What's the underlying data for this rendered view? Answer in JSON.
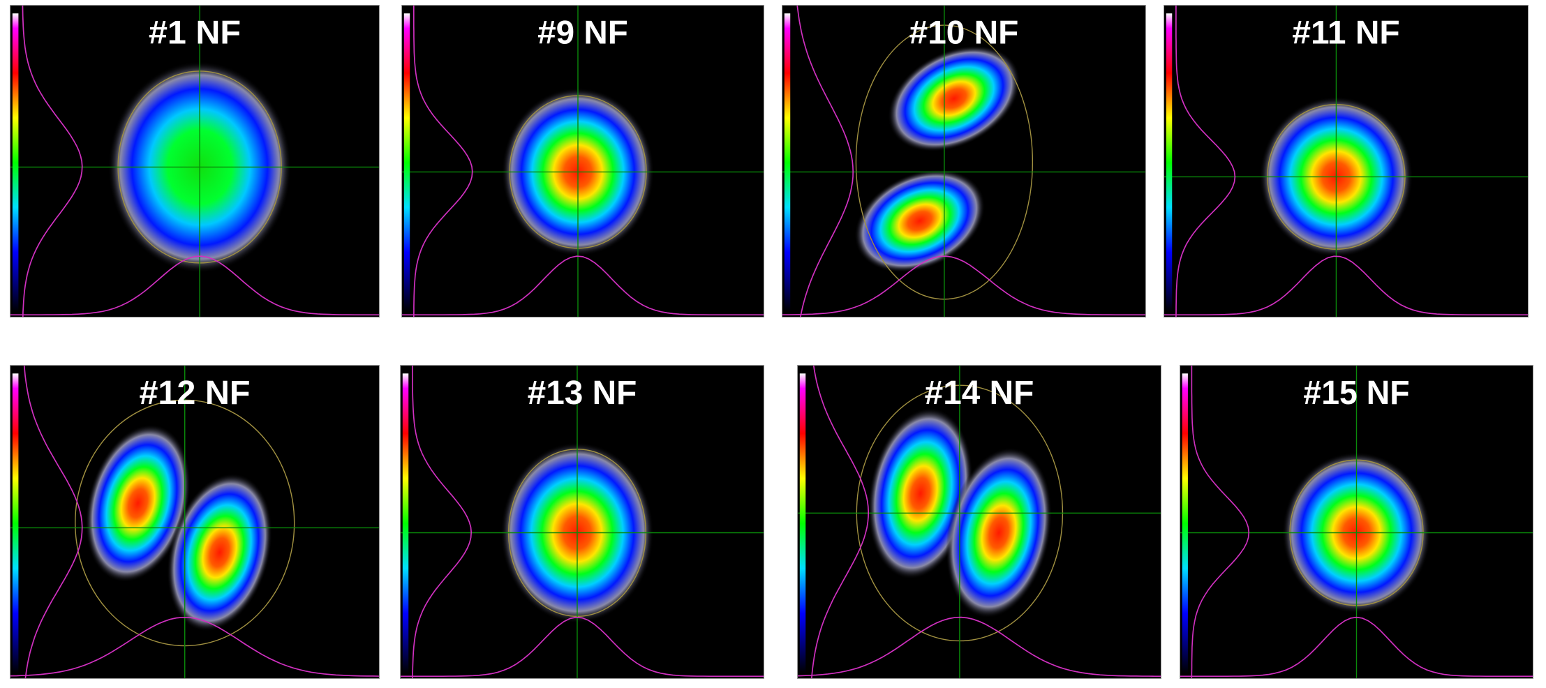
{
  "panels": [
    {
      "label": "#1 NF"
    },
    {
      "label": "#9 NF"
    },
    {
      "label": "#10 NF"
    },
    {
      "label": "#11 NF"
    },
    {
      "label": "#12 NF"
    },
    {
      "label": "#13 NF"
    },
    {
      "label": "#14 NF"
    },
    {
      "label": "#15 NF"
    }
  ]
}
